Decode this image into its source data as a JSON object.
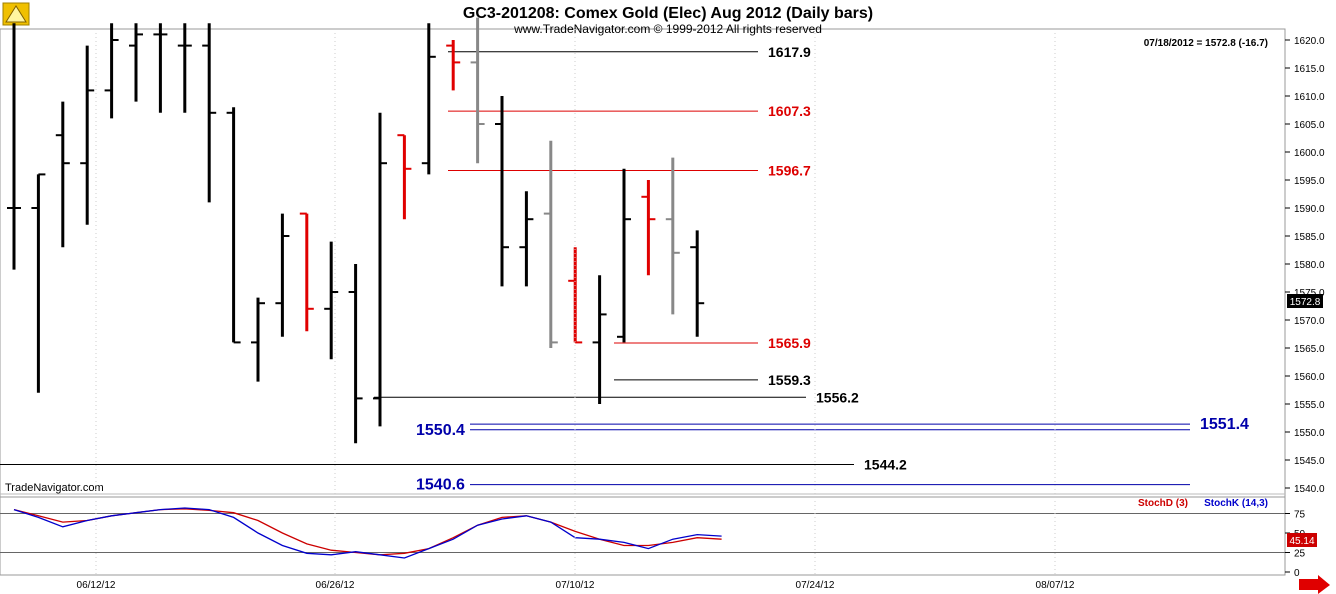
{
  "window": {
    "title": "GC3-201208:  Comex Gold (Elec) Aug 2012  (Daily bars)",
    "subtitle": "www.TradeNavigator.com © 1999-2012 All rights reserved",
    "watermark": "TradeNavigator.com",
    "readout": "07/18/2012 = 1572.8 (-16.7)",
    "last_price_badge": "1572.8",
    "stoch_badge": "45.14",
    "colors": {
      "up_bar": "#000000",
      "down_bar": "#000000",
      "red_bar": "#e00000",
      "gray_bar": "#888888",
      "stochK": "#0000cc",
      "stochD": "#cc0000",
      "blue_level": "#0000aa",
      "red_level": "#dd0000"
    }
  },
  "chart_data": [
    {
      "type": "ohlc",
      "title": "GC3-201208:  Comex Gold (Elec) Aug 2012  (Daily bars)",
      "ylim": [
        1536,
        1622
      ],
      "y_ticks": [
        1540,
        1545,
        1550,
        1555,
        1560,
        1565,
        1570,
        1575,
        1580,
        1585,
        1590,
        1595,
        1600,
        1605,
        1610,
        1615,
        1620
      ],
      "x_ticks": [
        "06/12/12",
        "06/26/12",
        "07/10/12",
        "07/24/12",
        "08/07/12"
      ],
      "bars": [
        {
          "date": "06/04/12",
          "o": 1590,
          "h": 1623,
          "l": 1579,
          "c": 1590,
          "color": "black"
        },
        {
          "date": "06/05/12",
          "o": 1590,
          "h": 1596,
          "l": 1557,
          "c": 1596,
          "color": "black"
        },
        {
          "date": "06/06/12",
          "o": 1603,
          "h": 1609,
          "l": 1583,
          "c": 1598,
          "color": "black"
        },
        {
          "date": "06/07/12",
          "o": 1598,
          "h": 1619,
          "l": 1587,
          "c": 1611,
          "color": "black"
        },
        {
          "date": "06/08/12",
          "o": 1611,
          "h": 1623,
          "l": 1606,
          "c": 1620,
          "color": "black"
        },
        {
          "date": "06/11/12",
          "o": 1619,
          "h": 1623,
          "l": 1609,
          "c": 1621,
          "color": "black"
        },
        {
          "date": "06/12/12",
          "o": 1621,
          "h": 1623,
          "l": 1607,
          "c": 1621,
          "color": "black"
        },
        {
          "date": "06/13/12",
          "o": 1619,
          "h": 1623,
          "l": 1607,
          "c": 1619,
          "color": "black"
        },
        {
          "date": "06/14/12",
          "o": 1619,
          "h": 1623,
          "l": 1591,
          "c": 1607,
          "color": "black"
        },
        {
          "date": "06/15/12",
          "o": 1607,
          "h": 1608,
          "l": 1566,
          "c": 1566,
          "color": "black"
        },
        {
          "date": "06/18/12",
          "o": 1566,
          "h": 1574,
          "l": 1559,
          "c": 1573,
          "color": "black"
        },
        {
          "date": "06/19/12",
          "o": 1573,
          "h": 1589,
          "l": 1567,
          "c": 1585,
          "color": "black"
        },
        {
          "date": "06/20/12",
          "o": 1589,
          "h": 1589,
          "l": 1568,
          "c": 1572,
          "color": "red"
        },
        {
          "date": "06/21/12",
          "o": 1572,
          "h": 1584,
          "l": 1563,
          "c": 1575,
          "color": "black"
        },
        {
          "date": "06/22/12",
          "o": 1575,
          "h": 1580,
          "l": 1548,
          "c": 1556,
          "color": "black"
        },
        {
          "date": "06/25/12",
          "o": 1556,
          "h": 1607,
          "l": 1551,
          "c": 1598,
          "color": "black"
        },
        {
          "date": "06/26/12",
          "o": 1603,
          "h": 1603,
          "l": 1588,
          "c": 1597,
          "color": "red"
        },
        {
          "date": "06/27/12",
          "o": 1598,
          "h": 1623,
          "l": 1596,
          "c": 1617,
          "color": "black"
        },
        {
          "date": "06/28/12",
          "o": 1619,
          "h": 1620,
          "l": 1611,
          "c": 1616,
          "color": "red"
        },
        {
          "date": "06/29/12",
          "o": 1616,
          "h": 1624,
          "l": 1598,
          "c": 1605,
          "color": "gray"
        },
        {
          "date": "07/02/12",
          "o": 1605,
          "h": 1610,
          "l": 1576,
          "c": 1583,
          "color": "black"
        },
        {
          "date": "07/03/12",
          "o": 1583,
          "h": 1593,
          "l": 1576,
          "c": 1588,
          "color": "black"
        },
        {
          "date": "07/05/12",
          "o": 1589,
          "h": 1602,
          "l": 1565,
          "c": 1566,
          "color": "gray"
        },
        {
          "date": "07/06/12",
          "o": 1577,
          "h": 1583,
          "l": 1566,
          "c": 1566,
          "color": "red"
        },
        {
          "date": "07/09/12",
          "o": 1566,
          "h": 1578,
          "l": 1555,
          "c": 1571,
          "color": "black"
        },
        {
          "date": "07/10/12",
          "o": 1567,
          "h": 1597,
          "l": 1566,
          "c": 1588,
          "color": "black"
        },
        {
          "date": "07/11/12",
          "o": 1592,
          "h": 1595,
          "l": 1578,
          "c": 1588,
          "color": "red"
        },
        {
          "date": "07/12/12",
          "o": 1588,
          "h": 1599,
          "l": 1571,
          "c": 1582,
          "color": "gray"
        },
        {
          "date": "07/13/12",
          "o": 1583,
          "h": 1586,
          "l": 1567,
          "c": 1573,
          "color": "black"
        }
      ],
      "levels": [
        {
          "label": "1617.9",
          "value": 1617.9,
          "color": "black",
          "from": "06/27/12"
        },
        {
          "label": "1607.3",
          "value": 1607.3,
          "color": "red",
          "from": "06/27/12"
        },
        {
          "label": "1596.7",
          "value": 1596.7,
          "color": "red",
          "from": "06/27/12"
        },
        {
          "label": "1565.9",
          "value": 1565.9,
          "color": "red",
          "from": "07/09/12"
        },
        {
          "label": "1559.3",
          "value": 1559.3,
          "color": "black",
          "from": "07/09/12"
        },
        {
          "label": "1556.2",
          "value": 1556.2,
          "color": "black",
          "from": "06/22/12"
        },
        {
          "label": "1551.4",
          "value": 1551.4,
          "color": "blue",
          "from": "07/03/12"
        },
        {
          "label": "1550.4",
          "value": 1550.4,
          "color": "blue",
          "from": "07/03/12"
        },
        {
          "label": "1544.2",
          "value": 1544.2,
          "color": "black",
          "from": "06/04/12"
        },
        {
          "label": "1540.6",
          "value": 1540.6,
          "color": "blue",
          "from": "07/03/12"
        }
      ]
    },
    {
      "type": "line",
      "ylim": [
        0,
        100
      ],
      "y_ticks": [
        0,
        25,
        50,
        75
      ],
      "series": [
        {
          "name": "StochD (3)",
          "color": "#cc0000",
          "values": [
            80,
            72,
            64,
            66,
            72,
            76,
            80,
            81,
            79,
            76,
            66,
            50,
            36,
            28,
            25,
            22,
            24,
            30,
            44,
            60,
            70,
            72,
            64,
            52,
            42,
            34,
            34,
            38,
            44,
            42
          ]
        },
        {
          "name": "StochK (14,3)",
          "color": "#0000cc",
          "values": [
            80,
            70,
            58,
            66,
            72,
            76,
            80,
            82,
            80,
            70,
            50,
            34,
            24,
            22,
            26,
            22,
            18,
            30,
            42,
            60,
            68,
            72,
            64,
            44,
            42,
            38,
            30,
            42,
            48,
            46
          ]
        }
      ]
    }
  ]
}
